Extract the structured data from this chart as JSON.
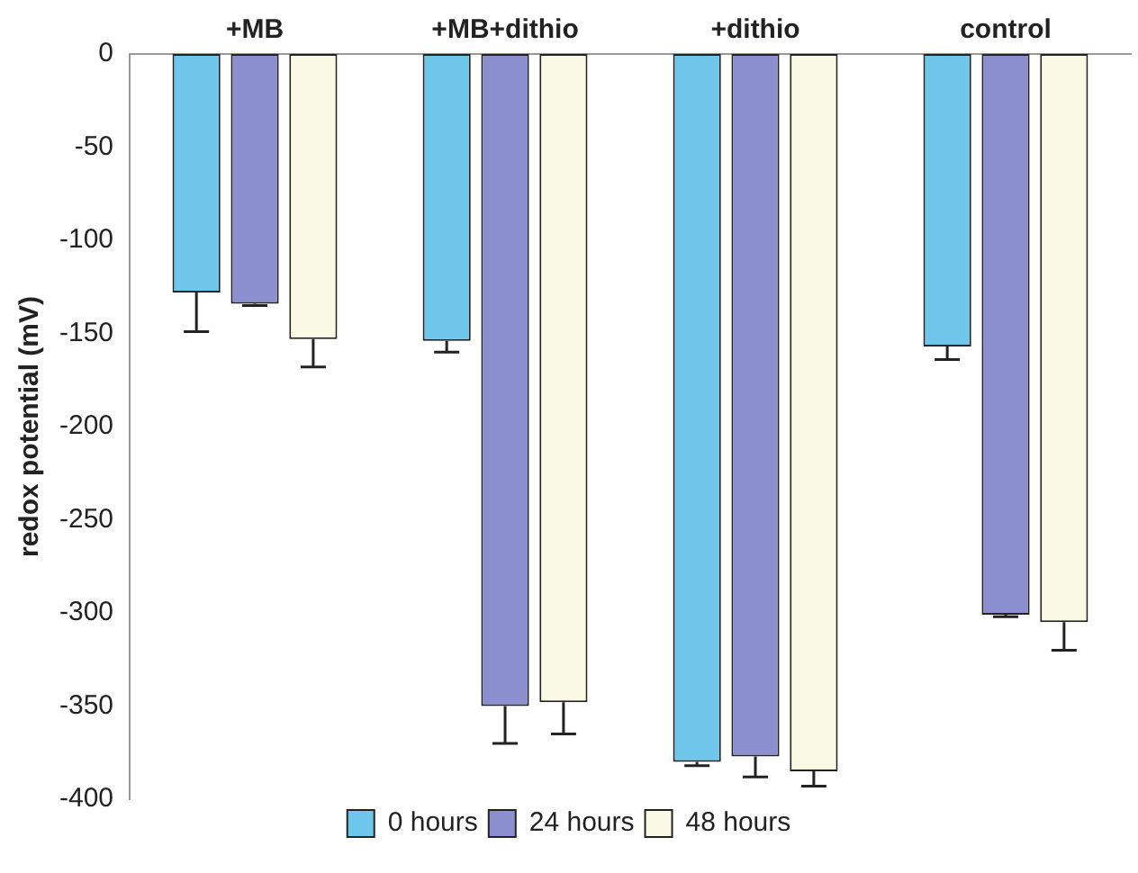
{
  "chart_data": {
    "type": "bar",
    "ylabel": "redox potential (mV)",
    "categories": [
      "+MB",
      "+MB+dithio",
      "+dithio",
      "control"
    ],
    "series": [
      {
        "name": "0 hours",
        "color": "#6ec6ea",
        "values": [
          -128,
          -154,
          -380,
          -157
        ],
        "errors": [
          [
            -149,
            -128
          ],
          [
            -160,
            -154
          ],
          [
            -382,
            -380
          ],
          [
            -164,
            -157
          ]
        ]
      },
      {
        "name": "24 hours",
        "color": "#8c8fcf",
        "values": [
          -134,
          -350,
          -377,
          -301
        ],
        "errors": [
          [
            -135,
            -134
          ],
          [
            -370,
            -350
          ],
          [
            -388,
            -377
          ],
          [
            -302,
            -301
          ]
        ]
      },
      {
        "name": "48 hours",
        "color": "#f9f9e4",
        "values": [
          -153,
          -348,
          -385,
          -305
        ],
        "errors": [
          [
            -168,
            -153
          ],
          [
            -365,
            -348
          ],
          [
            -393,
            -385
          ],
          [
            -320,
            -305
          ]
        ]
      }
    ],
    "ylim": [
      -400,
      0
    ],
    "yticks": [
      -400,
      -350,
      -300,
      -250,
      -200,
      -150,
      -100,
      -50,
      0
    ],
    "grid": false,
    "legend": "bottom"
  }
}
